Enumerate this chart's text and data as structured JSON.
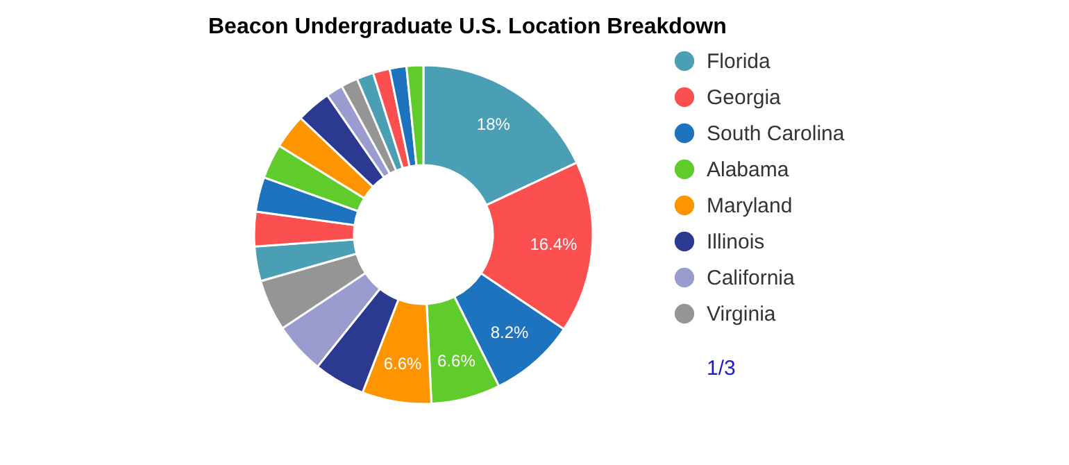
{
  "chart_data": {
    "type": "donut",
    "title": "Beacon Undergraduate U.S. Location Breakdown",
    "categories": [
      "Florida",
      "Georgia",
      "South Carolina",
      "Alabama",
      "Maryland",
      "Illinois",
      "California",
      "Virginia",
      null,
      null,
      null,
      null,
      null,
      null,
      null,
      null,
      null,
      null,
      null,
      null
    ],
    "values": [
      18,
      16.4,
      8.2,
      6.6,
      6.6,
      4.9,
      4.9,
      4.9,
      3.3,
      3.3,
      3.3,
      3.3,
      3.3,
      3.3,
      1.6,
      1.6,
      1.6,
      1.6,
      1.6,
      1.6
    ],
    "colors": [
      "#4a9fb5",
      "#fc5050",
      "#1e73be",
      "#5fcc2b",
      "#fd9400",
      "#2b3990",
      "#9a9ccf",
      "#959595",
      "#4a9fb5",
      "#fc5050",
      "#1e73be",
      "#5fcc2b",
      "#fd9400",
      "#2b3990",
      "#9a9ccf",
      "#959595",
      "#4a9fb5",
      "#fc5050",
      "#1e73be",
      "#5fcc2b"
    ],
    "value_labels": [
      "18%",
      "16.4%",
      "8.2%",
      "6.6%",
      "6.6%",
      null,
      null,
      null,
      null,
      null,
      null,
      null,
      null,
      null,
      null,
      null,
      null,
      null,
      null,
      null
    ],
    "legend": "right",
    "annotations": [
      "1/3"
    ]
  }
}
